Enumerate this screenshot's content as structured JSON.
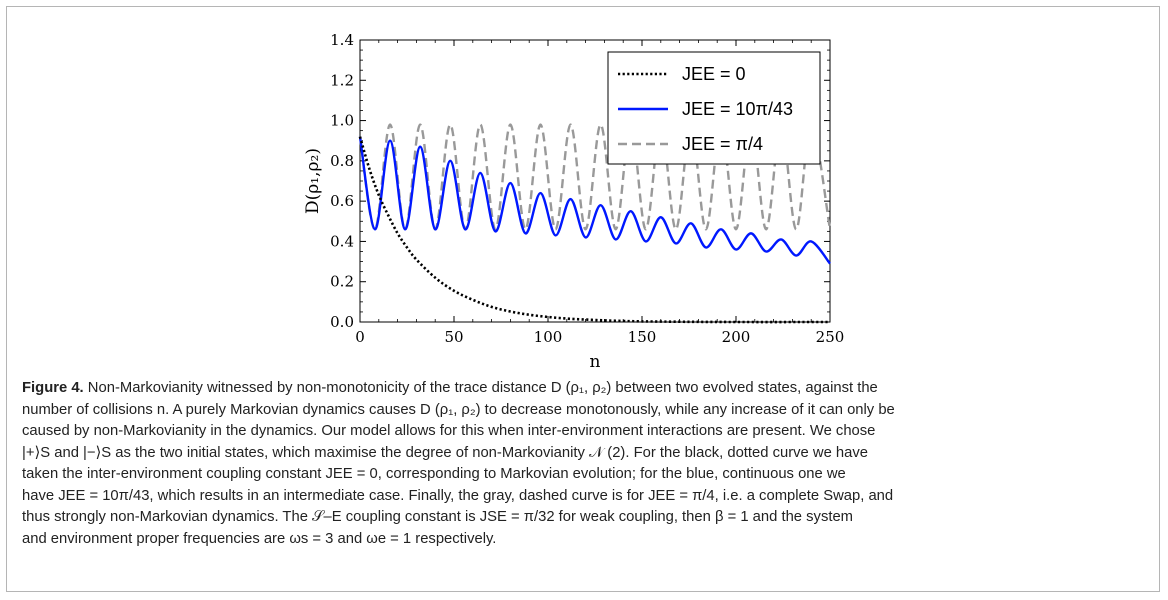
{
  "figure": {
    "label": "Figure 4.",
    "caption_lines": [
      "Non-Markovianity witnessed by non-monotonicity of the trace distance D (ρ₁, ρ₂) between two evolved states, against the",
      "number of collisions n. A purely Markovian dynamics causes D (ρ₁, ρ₂) to decrease monotonously, while any increase of it can only be",
      "caused by non-Markovianity in the dynamics. Our model allows for this when inter-environment interactions are present. We chose",
      "|+⟩S and |−⟩S as the two initial states, which maximise the degree of non-Markovianity 𝒩 (2). For the black, dotted curve we have",
      "taken the inter-environment coupling constant JEE = 0, corresponding to Markovian evolution; for the blue, continuous one we",
      "have JEE = 10π/43, which results in an intermediate case. Finally, the gray, dashed curve is for JEE = π/4, i.e. a complete Swap, and",
      "thus strongly non-Markovian dynamics. The 𝒮–E coupling constant is JSE = π/32 for weak coupling, then β = 1 and the system",
      "and environment proper frequencies are ωs = 3 and ωe = 1 respectively."
    ]
  },
  "chart_data": {
    "type": "line",
    "xlabel": "n",
    "ylabel": "D(ρ₁,ρ₂)",
    "xlim": [
      0,
      250
    ],
    "ylim": [
      0,
      1.4
    ],
    "x_ticks": [
      "0",
      "50",
      "100",
      "150",
      "200",
      "250"
    ],
    "y_ticks": [
      "0.0",
      "0.2",
      "0.4",
      "0.6",
      "0.8",
      "1.0",
      "1.2",
      "1.4"
    ],
    "grid": false,
    "legend_position": "top-right",
    "series": [
      {
        "name": "JEE = 0",
        "color": "#000000",
        "style": "dotted",
        "points": [
          [
            0,
            0.92
          ],
          [
            5,
            0.76
          ],
          [
            10,
            0.63
          ],
          [
            15,
            0.53
          ],
          [
            20,
            0.44
          ],
          [
            25,
            0.37
          ],
          [
            30,
            0.31
          ],
          [
            40,
            0.22
          ],
          [
            50,
            0.155
          ],
          [
            60,
            0.11
          ],
          [
            70,
            0.075
          ],
          [
            80,
            0.052
          ],
          [
            90,
            0.036
          ],
          [
            100,
            0.025
          ],
          [
            110,
            0.017
          ],
          [
            120,
            0.012
          ],
          [
            130,
            0.008
          ],
          [
            140,
            0.005
          ],
          [
            150,
            0.003
          ],
          [
            175,
            0.001
          ],
          [
            200,
            0.0
          ],
          [
            250,
            0.0
          ]
        ]
      },
      {
        "name": "JEE = 10π/43",
        "color": "#0018ff",
        "style": "solid",
        "points": [
          [
            0,
            0.92
          ],
          [
            8,
            0.46
          ],
          [
            16,
            0.9
          ],
          [
            24,
            0.46
          ],
          [
            32,
            0.87
          ],
          [
            40,
            0.46
          ],
          [
            48,
            0.8
          ],
          [
            56,
            0.46
          ],
          [
            64,
            0.74
          ],
          [
            72,
            0.45
          ],
          [
            80,
            0.69
          ],
          [
            88,
            0.44
          ],
          [
            96,
            0.64
          ],
          [
            104,
            0.43
          ],
          [
            112,
            0.61
          ],
          [
            120,
            0.42
          ],
          [
            128,
            0.58
          ],
          [
            136,
            0.41
          ],
          [
            144,
            0.55
          ],
          [
            152,
            0.4
          ],
          [
            160,
            0.52
          ],
          [
            168,
            0.39
          ],
          [
            176,
            0.49
          ],
          [
            184,
            0.37
          ],
          [
            192,
            0.46
          ],
          [
            200,
            0.36
          ],
          [
            208,
            0.44
          ],
          [
            216,
            0.35
          ],
          [
            224,
            0.41
          ],
          [
            232,
            0.33
          ],
          [
            240,
            0.4
          ],
          [
            250,
            0.29
          ]
        ]
      },
      {
        "name": "JEE = π/4",
        "color": "#999999",
        "style": "dashed",
        "points": [
          [
            0,
            0.92
          ],
          [
            8,
            0.46
          ],
          [
            16,
            0.98
          ],
          [
            24,
            0.46
          ],
          [
            32,
            0.98
          ],
          [
            40,
            0.46
          ],
          [
            48,
            0.98
          ],
          [
            56,
            0.46
          ],
          [
            64,
            0.98
          ],
          [
            72,
            0.46
          ],
          [
            80,
            0.98
          ],
          [
            88,
            0.46
          ],
          [
            96,
            0.98
          ],
          [
            104,
            0.46
          ],
          [
            112,
            0.98
          ],
          [
            120,
            0.46
          ],
          [
            128,
            0.98
          ],
          [
            136,
            0.46
          ],
          [
            144,
            0.98
          ],
          [
            152,
            0.46
          ],
          [
            160,
            0.98
          ],
          [
            168,
            0.46
          ],
          [
            176,
            0.98
          ],
          [
            184,
            0.46
          ],
          [
            192,
            0.98
          ],
          [
            200,
            0.46
          ],
          [
            208,
            0.98
          ],
          [
            216,
            0.46
          ],
          [
            224,
            0.98
          ],
          [
            232,
            0.46
          ],
          [
            240,
            0.98
          ],
          [
            250,
            0.46
          ]
        ]
      }
    ],
    "legend_entries": [
      "JEE = 0",
      "JEE = 10π/43",
      "JEE = π/4"
    ]
  }
}
